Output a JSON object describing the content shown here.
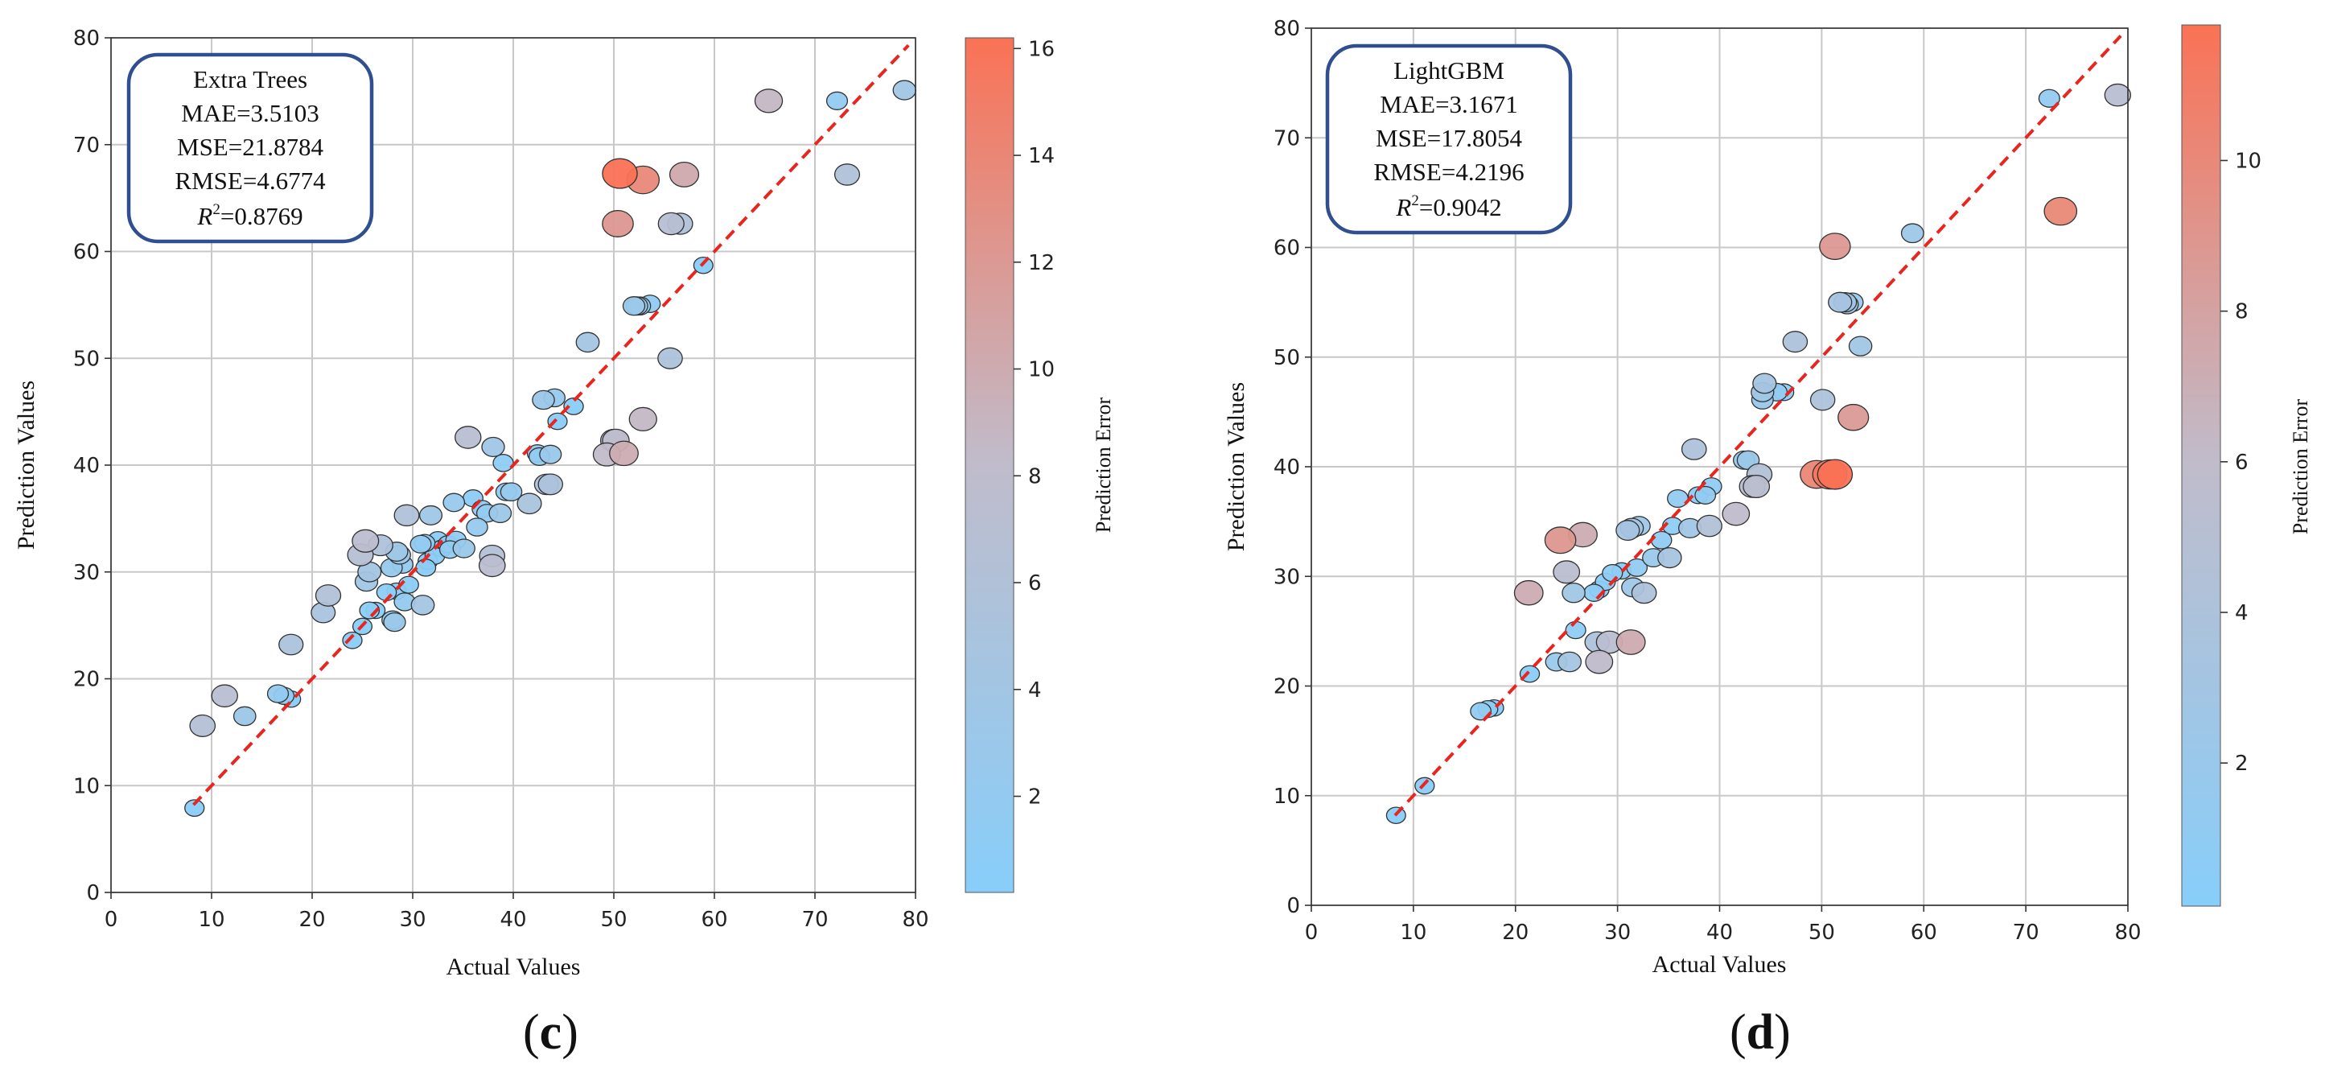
{
  "colors": {
    "low": "#87cefa",
    "mid": "#c0bccb",
    "high": "#fa7255",
    "fit_line": "#e8251f",
    "box_border": "#2f4f8f",
    "grid": "#c8c8c8"
  },
  "panels": [
    {
      "tag": "c"
    },
    {
      "tag": "d"
    }
  ],
  "chart_data": [
    {
      "type": "scatter",
      "title": "Extra Trees",
      "xlabel": "Actual Values",
      "ylabel": "Prediction Values",
      "colorbar_label": "Prediction Error",
      "xlim": [
        0,
        80
      ],
      "ylim": [
        0,
        80
      ],
      "xticks": [
        0,
        10,
        20,
        30,
        40,
        50,
        60,
        70,
        80
      ],
      "yticks": [
        0,
        10,
        20,
        30,
        40,
        50,
        60,
        70,
        80
      ],
      "colorbar_range": [
        0.2,
        16.2
      ],
      "colorbar_ticks": [
        2,
        4,
        6,
        8,
        10,
        12,
        14,
        16
      ],
      "grid": true,
      "legend_position": "top-left",
      "metrics": {
        "model": "Extra Trees",
        "mae": "MAE=3.5103",
        "mse": "MSE=21.8784",
        "rmse": "RMSE=4.6774",
        "r2_symbol": "R",
        "r2_sup": "2",
        "r2_value": "=0.8769"
      },
      "fit_line": {
        "from": [
          8.2,
          8.2
        ],
        "to": [
          79.3,
          79.3
        ]
      },
      "points": [
        [
          8.3,
          7.9
        ],
        [
          9.1,
          15.6
        ],
        [
          11.3,
          18.4
        ],
        [
          13.3,
          16.5
        ],
        [
          16.6,
          18.6
        ],
        [
          17.2,
          18.4
        ],
        [
          17.9,
          18.1
        ],
        [
          17.9,
          23.2
        ],
        [
          21.1,
          26.2
        ],
        [
          21.6,
          27.8
        ],
        [
          24,
          23.6
        ],
        [
          24.8,
          31.6
        ],
        [
          25,
          24.9
        ],
        [
          25.3,
          32.9
        ],
        [
          25.4,
          29.1
        ],
        [
          25.7,
          30
        ],
        [
          25.7,
          26.4
        ],
        [
          26.3,
          26.4
        ],
        [
          26.8,
          32.5
        ],
        [
          27.4,
          28.1
        ],
        [
          27.9,
          30.4
        ],
        [
          28,
          25.5
        ],
        [
          28.2,
          25.3
        ],
        [
          28.4,
          28.2
        ],
        [
          28.4,
          31.9
        ],
        [
          28.7,
          31.6
        ],
        [
          29,
          30.7
        ],
        [
          29.2,
          27.2
        ],
        [
          29.4,
          35.3
        ],
        [
          29.6,
          28.8
        ],
        [
          30.8,
          32.6
        ],
        [
          31,
          26.9
        ],
        [
          31.2,
          32.7
        ],
        [
          31.3,
          30.4
        ],
        [
          31.5,
          31
        ],
        [
          31.8,
          35.3
        ],
        [
          32.2,
          31.5
        ],
        [
          32.5,
          33
        ],
        [
          32.9,
          32.2
        ],
        [
          33.5,
          32.6
        ],
        [
          33.7,
          32.1
        ],
        [
          34.1,
          36.5
        ],
        [
          34.3,
          33
        ],
        [
          35.1,
          32.2
        ],
        [
          35.5,
          42.6
        ],
        [
          36,
          36.9
        ],
        [
          36.4,
          34.2
        ],
        [
          36.9,
          35.9
        ],
        [
          37.4,
          35.5
        ],
        [
          37.9,
          30.6
        ],
        [
          37.9,
          31.5
        ],
        [
          38,
          41.7
        ],
        [
          38.7,
          35.5
        ],
        [
          39,
          40.2
        ],
        [
          39.3,
          37.5
        ],
        [
          39.8,
          37.5
        ],
        [
          41.6,
          36.4
        ],
        [
          42.4,
          41.1
        ],
        [
          42.6,
          40.8
        ],
        [
          43,
          46.1
        ],
        [
          43.3,
          38.2
        ],
        [
          43.7,
          38.2
        ],
        [
          43.7,
          41
        ],
        [
          44.1,
          46.3
        ],
        [
          44.4,
          44.1
        ],
        [
          46,
          45.5
        ],
        [
          47.4,
          51.5
        ],
        [
          49.3,
          41
        ],
        [
          50,
          42.3
        ],
        [
          50.2,
          42.3
        ],
        [
          50.4,
          62.6
        ],
        [
          50.6,
          67.3
        ],
        [
          51,
          41.1
        ],
        [
          52,
          54.9
        ],
        [
          52.3,
          54.9
        ],
        [
          52.6,
          54.9
        ],
        [
          52.9,
          44.3
        ],
        [
          52.9,
          66.7
        ],
        [
          53.6,
          55.1
        ],
        [
          55.6,
          50
        ],
        [
          55.7,
          62.6
        ],
        [
          56.6,
          62.6
        ],
        [
          57,
          67.2
        ],
        [
          58.9,
          58.7
        ],
        [
          65.4,
          74.1
        ],
        [
          72.2,
          74.1
        ],
        [
          73.2,
          67.2
        ],
        [
          78.9,
          75.1
        ]
      ]
    },
    {
      "type": "scatter",
      "title": "LightGBM",
      "xlabel": "Actual Values",
      "ylabel": "Prediction Values",
      "colorbar_label": "Prediction Error",
      "xlim": [
        0,
        80
      ],
      "ylim": [
        0,
        80
      ],
      "xticks": [
        0,
        10,
        20,
        30,
        40,
        50,
        60,
        70,
        80
      ],
      "yticks": [
        0,
        10,
        20,
        30,
        40,
        50,
        60,
        70,
        80
      ],
      "colorbar_range": [
        0.1,
        11.8
      ],
      "colorbar_ticks": [
        2,
        4,
        6,
        8,
        10
      ],
      "grid": true,
      "legend_position": "top-left",
      "metrics": {
        "model": "LightGBM",
        "mae": "MAE=3.1671",
        "mse": "MSE=17.8054",
        "rmse": "RMSE=4.2196",
        "r2_symbol": "R",
        "r2_sup": "2",
        "r2_value": "=0.9042"
      },
      "fit_line": {
        "from": [
          8.2,
          8.2
        ],
        "to": [
          79.3,
          79.3
        ]
      },
      "points": [
        [
          8.3,
          8.2
        ],
        [
          11.1,
          10.9
        ],
        [
          16.6,
          17.7
        ],
        [
          17.3,
          17.9
        ],
        [
          17.9,
          18
        ],
        [
          21.3,
          28.5
        ],
        [
          21.4,
          21.1
        ],
        [
          24,
          22.2
        ],
        [
          24.4,
          33.3
        ],
        [
          25,
          30.4
        ],
        [
          25.3,
          22.2
        ],
        [
          25.7,
          28.5
        ],
        [
          25.9,
          25.1
        ],
        [
          26.6,
          33.8
        ],
        [
          27.7,
          28.5
        ],
        [
          28,
          24
        ],
        [
          28.2,
          22.2
        ],
        [
          28.2,
          28.8
        ],
        [
          28.8,
          29.5
        ],
        [
          29.2,
          24
        ],
        [
          29.5,
          30.3
        ],
        [
          30.4,
          30.5
        ],
        [
          31,
          34.2
        ],
        [
          31.3,
          24
        ],
        [
          31.4,
          34.4
        ],
        [
          31.5,
          29
        ],
        [
          31.9,
          30.8
        ],
        [
          32.1,
          34.6
        ],
        [
          32.6,
          28.5
        ],
        [
          33.5,
          31.7
        ],
        [
          34.3,
          33.3
        ],
        [
          35.1,
          31.7
        ],
        [
          35.4,
          34.6
        ],
        [
          35.9,
          37.1
        ],
        [
          37.1,
          34.4
        ],
        [
          37.5,
          41.6
        ],
        [
          37.9,
          37.4
        ],
        [
          38.6,
          37.4
        ],
        [
          39,
          34.6
        ],
        [
          39.2,
          38.2
        ],
        [
          41.6,
          35.7
        ],
        [
          42.4,
          40.6
        ],
        [
          42.8,
          40.6
        ],
        [
          43.2,
          38.2
        ],
        [
          43.6,
          38.2
        ],
        [
          43.9,
          39.3
        ],
        [
          44.2,
          46.1
        ],
        [
          44.2,
          46.8
        ],
        [
          44.4,
          47.6
        ],
        [
          45.6,
          46.8
        ],
        [
          46.3,
          46.8
        ],
        [
          47.4,
          51.4
        ],
        [
          49.5,
          39.3
        ],
        [
          50.1,
          46.1
        ],
        [
          50.8,
          39.3
        ],
        [
          51.3,
          39.3
        ],
        [
          51.3,
          60.1
        ],
        [
          51.8,
          55
        ],
        [
          52.3,
          55
        ],
        [
          52.5,
          54.8
        ],
        [
          53,
          55
        ],
        [
          53.1,
          44.5
        ],
        [
          53.8,
          51
        ],
        [
          58.9,
          61.3
        ],
        [
          72.3,
          73.6
        ],
        [
          73.4,
          63.3
        ],
        [
          79,
          73.9
        ]
      ]
    }
  ]
}
